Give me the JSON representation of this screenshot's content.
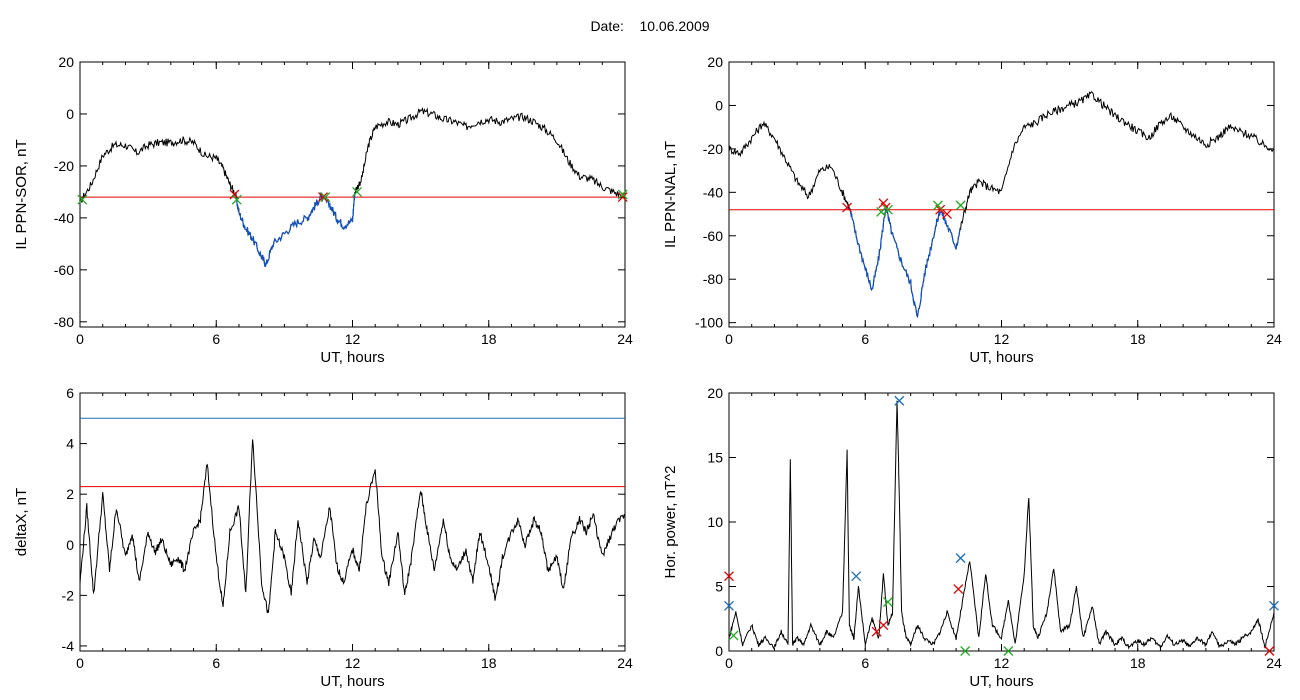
{
  "header": {
    "date_label": "Date:",
    "date_value": "10.06.2009"
  },
  "colors": {
    "trace": "#000000",
    "threshold": "#e00000",
    "blue": "#1050c0",
    "cyan": "#1a70b8",
    "green": "#22aa22"
  },
  "chart_data": [
    {
      "type": "line",
      "ylabel": "IL PPN-SOR, nT",
      "xlabel": "UT, hours",
      "xlim": [
        0,
        24
      ],
      "ylim": [
        -82,
        20
      ],
      "xticks": [
        "0",
        "6",
        "12",
        "18",
        "24"
      ],
      "yticks": [
        "20",
        "0",
        "-20",
        "-40",
        "-60",
        "-80"
      ],
      "threshold": -32,
      "x": [
        0,
        0.5,
        1,
        1.5,
        2,
        2.5,
        3,
        3.5,
        4,
        4.5,
        5,
        5.5,
        6,
        6.3,
        6.6,
        6.85,
        7,
        7.3,
        7.6,
        8,
        8.2,
        8.5,
        9,
        9.5,
        10,
        10.3,
        10.6,
        11,
        11.3,
        11.6,
        12,
        12.1,
        12.4,
        12.7,
        13,
        13.5,
        14,
        14.5,
        15,
        15.5,
        16,
        16.5,
        17,
        17.5,
        18,
        18.5,
        19,
        19.5,
        20,
        20.5,
        21,
        21.5,
        22,
        22.5,
        23,
        23.5,
        24
      ],
      "y": [
        -34,
        -27,
        -16,
        -12,
        -12,
        -15,
        -12,
        -11,
        -11,
        -10,
        -11,
        -16,
        -17,
        -21,
        -27,
        -31,
        -38,
        -44,
        -48,
        -55,
        -58,
        -50,
        -46,
        -42,
        -40,
        -36,
        -32,
        -35,
        -40,
        -43,
        -41,
        -30,
        -25,
        -12,
        -5,
        -3,
        -4,
        -2,
        1,
        0,
        -2,
        -3,
        -5,
        -3,
        -2,
        -3,
        -2,
        -1,
        -3,
        -6,
        -10,
        -18,
        -24,
        -25,
        -28,
        -30,
        -32
      ],
      "highlight_range": [
        6.85,
        12.1
      ],
      "red_markers": [
        {
          "x": 6.8,
          "y": -31
        },
        {
          "x": 10.7,
          "y": -32
        },
        {
          "x": 23.9,
          "y": -32
        }
      ],
      "green_markers": [
        {
          "x": 0.1,
          "y": -33
        },
        {
          "x": 6.9,
          "y": -33
        },
        {
          "x": 10.8,
          "y": -32
        },
        {
          "x": 12.2,
          "y": -30
        },
        {
          "x": 23.9,
          "y": -31
        }
      ]
    },
    {
      "type": "line",
      "ylabel": "IL PPN-NAL, nT",
      "xlabel": "UT, hours",
      "xlim": [
        0,
        24
      ],
      "ylim": [
        -102,
        20
      ],
      "xticks": [
        "0",
        "6",
        "12",
        "18",
        "24"
      ],
      "yticks": [
        "20",
        "0",
        "-20",
        "-40",
        "-60",
        "-80",
        "-100"
      ],
      "threshold": -48,
      "x": [
        0,
        0.5,
        1,
        1.5,
        2,
        2.5,
        3,
        3.5,
        4,
        4.5,
        5,
        5.3,
        5.6,
        6,
        6.3,
        6.6,
        6.9,
        7.2,
        7.6,
        8,
        8.3,
        8.6,
        9,
        9.3,
        9.6,
        10,
        10.3,
        10.6,
        11,
        11.5,
        12,
        12.5,
        13,
        13.5,
        14,
        14.5,
        15,
        15.5,
        16,
        16.5,
        17,
        17.5,
        18,
        18.5,
        19,
        19.5,
        20,
        20.5,
        21,
        21.5,
        22,
        22.5,
        23,
        23.5,
        24
      ],
      "y": [
        -20,
        -22,
        -15,
        -8,
        -15,
        -25,
        -35,
        -42,
        -30,
        -28,
        -40,
        -47,
        -60,
        -75,
        -85,
        -70,
        -47,
        -60,
        -72,
        -82,
        -98,
        -78,
        -60,
        -48,
        -55,
        -65,
        -52,
        -40,
        -35,
        -38,
        -40,
        -20,
        -10,
        -8,
        -4,
        -2,
        0,
        2,
        5,
        0,
        -5,
        -8,
        -12,
        -15,
        -8,
        -5,
        -10,
        -14,
        -18,
        -15,
        -10,
        -12,
        -14,
        -18,
        -20
      ],
      "highlight_range": [
        5.3,
        10.2
      ],
      "red_markers": [
        {
          "x": 5.2,
          "y": -47
        },
        {
          "x": 6.8,
          "y": -45
        },
        {
          "x": 6.9,
          "y": -47
        },
        {
          "x": 9.3,
          "y": -48
        },
        {
          "x": 9.6,
          "y": -50
        }
      ],
      "green_markers": [
        {
          "x": 6.7,
          "y": -49
        },
        {
          "x": 7.0,
          "y": -48
        },
        {
          "x": 9.2,
          "y": -46
        },
        {
          "x": 10.2,
          "y": -46
        }
      ]
    },
    {
      "type": "line",
      "ylabel": "deltaX, nT",
      "xlabel": "UT, hours",
      "xlim": [
        0,
        24
      ],
      "ylim": [
        -4.2,
        6
      ],
      "xticks": [
        "0",
        "6",
        "12",
        "18",
        "24"
      ],
      "yticks": [
        "6",
        "4",
        "2",
        "0",
        "-2",
        "-4"
      ],
      "threshold_blue": 5.0,
      "threshold": 2.3,
      "x": [
        0,
        0.3,
        0.6,
        1,
        1.3,
        1.6,
        2,
        2.3,
        2.6,
        3,
        3.3,
        3.6,
        4,
        4.3,
        4.6,
        5,
        5.3,
        5.6,
        6,
        6.3,
        6.6,
        7,
        7.3,
        7.6,
        8,
        8.3,
        8.6,
        9,
        9.3,
        9.6,
        10,
        10.3,
        10.6,
        11,
        11.3,
        11.6,
        12,
        12.3,
        12.6,
        13,
        13.3,
        13.6,
        14,
        14.3,
        14.6,
        15,
        15.3,
        15.6,
        16,
        16.3,
        16.6,
        17,
        17.3,
        17.6,
        18,
        18.3,
        18.6,
        19,
        19.3,
        19.6,
        20,
        20.3,
        20.6,
        21,
        21.3,
        21.6,
        22,
        22.3,
        22.6,
        23,
        23.3,
        23.6,
        24
      ],
      "y": [
        -1.5,
        1.5,
        -2.0,
        2.0,
        -1.0,
        1.5,
        -0.5,
        0.5,
        -1.5,
        0.5,
        -0.3,
        0.2,
        -0.8,
        -0.5,
        -1.0,
        0.5,
        1.0,
        3.2,
        -0.5,
        -2.5,
        0.5,
        1.5,
        -2.0,
        4.3,
        -1.5,
        -2.8,
        0.5,
        -0.5,
        -2.0,
        1.0,
        -1.5,
        0.2,
        -0.5,
        1.5,
        -0.8,
        -1.5,
        -0.2,
        -1.0,
        1.5,
        3.0,
        -0.5,
        -1.5,
        0.5,
        -2.0,
        -0.5,
        2.2,
        0.5,
        -1.0,
        1.0,
        -0.5,
        -1.0,
        -0.2,
        -1.5,
        0.5,
        -0.8,
        -2.2,
        -0.5,
        0.5,
        1.0,
        0.0,
        1.0,
        0.5,
        -1.0,
        -0.5,
        -1.8,
        0.2,
        1.0,
        0.5,
        1.2,
        -0.5,
        0.2,
        0.8,
        1.2
      ]
    },
    {
      "type": "line",
      "ylabel": "Hor. power, nT^2",
      "xlabel": "UT, hours",
      "xlim": [
        0,
        24
      ],
      "ylim": [
        0,
        20
      ],
      "xticks": [
        "0",
        "6",
        "12",
        "18",
        "24"
      ],
      "yticks": [
        "20",
        "15",
        "10",
        "5",
        "0"
      ],
      "x": [
        0,
        0.3,
        0.6,
        1,
        1.3,
        1.6,
        2,
        2.3,
        2.6,
        2.7,
        2.8,
        3,
        3.3,
        3.6,
        4,
        4.3,
        4.6,
        5,
        5.2,
        5.3,
        5.5,
        5.7,
        6,
        6.3,
        6.6,
        6.8,
        7,
        7.2,
        7.4,
        7.5,
        7.6,
        7.8,
        8,
        8.3,
        8.6,
        9,
        9.3,
        9.6,
        10,
        10.3,
        10.6,
        11,
        11.3,
        11.6,
        12,
        12.3,
        12.6,
        13,
        13.2,
        13.4,
        13.6,
        14,
        14.3,
        14.6,
        15,
        15.3,
        15.6,
        16,
        16.3,
        16.6,
        17,
        17.3,
        17.6,
        18,
        18.3,
        18.6,
        19,
        19.3,
        19.6,
        20,
        20.3,
        20.6,
        21,
        21.3,
        21.6,
        22,
        22.3,
        22.6,
        23,
        23.3,
        23.6,
        24
      ],
      "y": [
        1.0,
        3.0,
        0.5,
        2.0,
        0.5,
        1.0,
        0.3,
        1.5,
        0.5,
        14.8,
        0.5,
        1.0,
        0.5,
        2.0,
        0.5,
        1.5,
        1.0,
        3.0,
        15.5,
        2.0,
        1.0,
        5.0,
        0.5,
        2.5,
        1.0,
        6.0,
        2.0,
        3.0,
        19.5,
        12.0,
        3.0,
        1.0,
        0.5,
        2.0,
        1.0,
        0.5,
        1.5,
        3.0,
        1.0,
        4.0,
        7.0,
        1.0,
        6.0,
        2.0,
        1.0,
        4.0,
        0.5,
        6.0,
        12.0,
        2.0,
        1.0,
        3.0,
        6.5,
        1.5,
        2.0,
        5.0,
        1.0,
        3.5,
        0.5,
        1.5,
        0.5,
        1.0,
        0.3,
        0.8,
        0.5,
        1.0,
        0.3,
        1.2,
        0.5,
        0.8,
        0.3,
        1.0,
        0.5,
        1.5,
        0.3,
        0.8,
        0.5,
        1.0,
        1.5,
        2.5,
        0.3,
        3.0
      ],
      "blue_markers": [
        {
          "x": 0.0,
          "y": 3.5
        },
        {
          "x": 5.6,
          "y": 5.8
        },
        {
          "x": 7.5,
          "y": 19.4
        },
        {
          "x": 10.2,
          "y": 7.2
        },
        {
          "x": 24.0,
          "y": 3.5
        }
      ],
      "red_markers": [
        {
          "x": 0.0,
          "y": 5.8
        },
        {
          "x": 6.5,
          "y": 1.5
        },
        {
          "x": 6.8,
          "y": 2.0
        },
        {
          "x": 10.1,
          "y": 4.8
        },
        {
          "x": 23.8,
          "y": 0.0
        }
      ],
      "green_markers": [
        {
          "x": 0.2,
          "y": 1.2
        },
        {
          "x": 7.0,
          "y": 3.8
        },
        {
          "x": 10.4,
          "y": 0.0
        },
        {
          "x": 12.3,
          "y": 0.0
        }
      ]
    }
  ]
}
